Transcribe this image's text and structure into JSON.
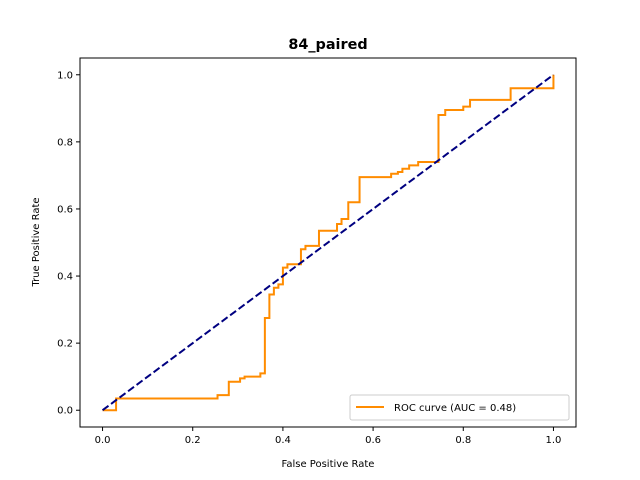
{
  "chart_data": {
    "type": "line",
    "title": "84_paired",
    "xlabel": "False Positive Rate",
    "ylabel": "True Positive Rate",
    "xlim": [
      -0.05,
      1.05
    ],
    "ylim": [
      -0.05,
      1.05
    ],
    "xticks": [
      "0.0",
      "0.2",
      "0.4",
      "0.6",
      "0.8",
      "1.0"
    ],
    "yticks": [
      "0.0",
      "0.2",
      "0.4",
      "0.6",
      "0.8",
      "1.0"
    ],
    "grid": false,
    "legend_position": "lower-right",
    "series": [
      {
        "name": "ROC curve (AUC = 0.48)",
        "color": "#ff8c00",
        "style": "solid",
        "x": [
          0.0,
          0.03,
          0.03,
          0.255,
          0.255,
          0.28,
          0.28,
          0.305,
          0.305,
          0.315,
          0.315,
          0.33,
          0.33,
          0.35,
          0.35,
          0.36,
          0.36,
          0.37,
          0.37,
          0.38,
          0.38,
          0.39,
          0.39,
          0.4,
          0.4,
          0.41,
          0.41,
          0.44,
          0.44,
          0.45,
          0.45,
          0.48,
          0.48,
          0.52,
          0.52,
          0.53,
          0.53,
          0.545,
          0.545,
          0.57,
          0.57,
          0.64,
          0.64,
          0.655,
          0.655,
          0.665,
          0.665,
          0.68,
          0.68,
          0.7,
          0.7,
          0.72,
          0.72,
          0.745,
          0.745,
          0.76,
          0.76,
          0.8,
          0.8,
          0.815,
          0.815,
          0.905,
          0.905,
          1.0,
          1.0
        ],
        "y": [
          0.0,
          0.0,
          0.035,
          0.035,
          0.045,
          0.045,
          0.085,
          0.085,
          0.095,
          0.095,
          0.1,
          0.1,
          0.1,
          0.1,
          0.11,
          0.11,
          0.275,
          0.275,
          0.345,
          0.345,
          0.365,
          0.365,
          0.375,
          0.375,
          0.425,
          0.425,
          0.435,
          0.435,
          0.48,
          0.48,
          0.49,
          0.49,
          0.535,
          0.535,
          0.555,
          0.555,
          0.57,
          0.57,
          0.62,
          0.62,
          0.695,
          0.695,
          0.705,
          0.705,
          0.71,
          0.71,
          0.72,
          0.72,
          0.73,
          0.73,
          0.74,
          0.74,
          0.74,
          0.74,
          0.88,
          0.88,
          0.895,
          0.895,
          0.905,
          0.905,
          0.925,
          0.925,
          0.96,
          0.96,
          1.0
        ]
      },
      {
        "name": "",
        "color": "#000080",
        "style": "dashed",
        "x": [
          0.0,
          1.0
        ],
        "y": [
          0.0,
          1.0
        ]
      }
    ]
  }
}
